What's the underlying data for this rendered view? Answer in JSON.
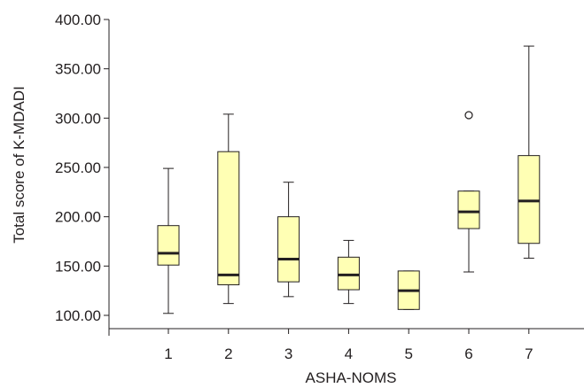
{
  "chart_data": {
    "type": "box",
    "xlabel": "ASHA-NOMS",
    "ylabel": "Total score of K-MDADI",
    "categories": [
      "1",
      "2",
      "3",
      "4",
      "5",
      "6",
      "7"
    ],
    "y_ticks": [
      "100.00",
      "150.00",
      "200.00",
      "250.00",
      "300.00",
      "350.00",
      "400.00"
    ],
    "ylim": [
      91,
      405
    ],
    "box_color": "#ffffb4",
    "boxes": [
      {
        "category": "1",
        "min": 102,
        "q1": 151,
        "median": 163,
        "q3": 191,
        "max": 249,
        "outliers": []
      },
      {
        "category": "2",
        "min": 112,
        "q1": 131,
        "median": 141,
        "q3": 266,
        "max": 304,
        "outliers": []
      },
      {
        "category": "3",
        "min": 119,
        "q1": 134,
        "median": 157,
        "q3": 200,
        "max": 235,
        "outliers": []
      },
      {
        "category": "4",
        "min": 112,
        "q1": 126,
        "median": 141,
        "q3": 159,
        "max": 176,
        "outliers": []
      },
      {
        "category": "5",
        "min": 106,
        "q1": 106,
        "median": 125,
        "q3": 145,
        "max": 145,
        "outliers": []
      },
      {
        "category": "6",
        "min": 144,
        "q1": 188,
        "median": 205,
        "q3": 226,
        "max": 226,
        "outliers": [
          303
        ]
      },
      {
        "category": "7",
        "min": 158,
        "q1": 173,
        "median": 216,
        "q3": 262,
        "max": 373,
        "outliers": []
      }
    ]
  }
}
